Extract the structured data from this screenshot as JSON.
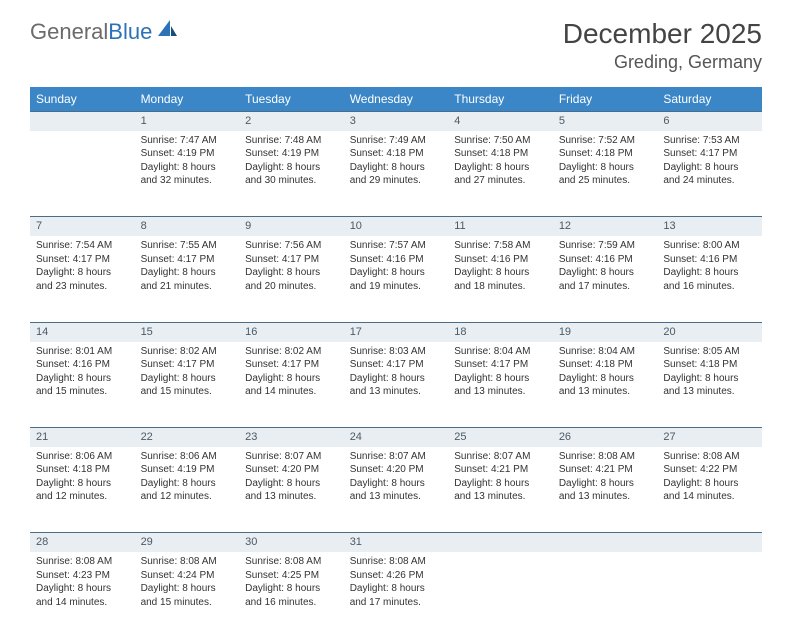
{
  "brand": {
    "name_gray": "General",
    "name_blue": "Blue"
  },
  "title": "December 2025",
  "location": "Greding, Germany",
  "header_bg": "#3b86c7",
  "daynum_bg": "#e9eef2",
  "daynum_border": "#4a6d8a",
  "weekdays": [
    "Sunday",
    "Monday",
    "Tuesday",
    "Wednesday",
    "Thursday",
    "Friday",
    "Saturday"
  ],
  "weeks": [
    {
      "days": [
        {
          "num": "",
          "lines": []
        },
        {
          "num": "1",
          "lines": [
            "Sunrise: 7:47 AM",
            "Sunset: 4:19 PM",
            "Daylight: 8 hours",
            "and 32 minutes."
          ]
        },
        {
          "num": "2",
          "lines": [
            "Sunrise: 7:48 AM",
            "Sunset: 4:19 PM",
            "Daylight: 8 hours",
            "and 30 minutes."
          ]
        },
        {
          "num": "3",
          "lines": [
            "Sunrise: 7:49 AM",
            "Sunset: 4:18 PM",
            "Daylight: 8 hours",
            "and 29 minutes."
          ]
        },
        {
          "num": "4",
          "lines": [
            "Sunrise: 7:50 AM",
            "Sunset: 4:18 PM",
            "Daylight: 8 hours",
            "and 27 minutes."
          ]
        },
        {
          "num": "5",
          "lines": [
            "Sunrise: 7:52 AM",
            "Sunset: 4:18 PM",
            "Daylight: 8 hours",
            "and 25 minutes."
          ]
        },
        {
          "num": "6",
          "lines": [
            "Sunrise: 7:53 AM",
            "Sunset: 4:17 PM",
            "Daylight: 8 hours",
            "and 24 minutes."
          ]
        }
      ]
    },
    {
      "days": [
        {
          "num": "7",
          "lines": [
            "Sunrise: 7:54 AM",
            "Sunset: 4:17 PM",
            "Daylight: 8 hours",
            "and 23 minutes."
          ]
        },
        {
          "num": "8",
          "lines": [
            "Sunrise: 7:55 AM",
            "Sunset: 4:17 PM",
            "Daylight: 8 hours",
            "and 21 minutes."
          ]
        },
        {
          "num": "9",
          "lines": [
            "Sunrise: 7:56 AM",
            "Sunset: 4:17 PM",
            "Daylight: 8 hours",
            "and 20 minutes."
          ]
        },
        {
          "num": "10",
          "lines": [
            "Sunrise: 7:57 AM",
            "Sunset: 4:16 PM",
            "Daylight: 8 hours",
            "and 19 minutes."
          ]
        },
        {
          "num": "11",
          "lines": [
            "Sunrise: 7:58 AM",
            "Sunset: 4:16 PM",
            "Daylight: 8 hours",
            "and 18 minutes."
          ]
        },
        {
          "num": "12",
          "lines": [
            "Sunrise: 7:59 AM",
            "Sunset: 4:16 PM",
            "Daylight: 8 hours",
            "and 17 minutes."
          ]
        },
        {
          "num": "13",
          "lines": [
            "Sunrise: 8:00 AM",
            "Sunset: 4:16 PM",
            "Daylight: 8 hours",
            "and 16 minutes."
          ]
        }
      ]
    },
    {
      "days": [
        {
          "num": "14",
          "lines": [
            "Sunrise: 8:01 AM",
            "Sunset: 4:16 PM",
            "Daylight: 8 hours",
            "and 15 minutes."
          ]
        },
        {
          "num": "15",
          "lines": [
            "Sunrise: 8:02 AM",
            "Sunset: 4:17 PM",
            "Daylight: 8 hours",
            "and 15 minutes."
          ]
        },
        {
          "num": "16",
          "lines": [
            "Sunrise: 8:02 AM",
            "Sunset: 4:17 PM",
            "Daylight: 8 hours",
            "and 14 minutes."
          ]
        },
        {
          "num": "17",
          "lines": [
            "Sunrise: 8:03 AM",
            "Sunset: 4:17 PM",
            "Daylight: 8 hours",
            "and 13 minutes."
          ]
        },
        {
          "num": "18",
          "lines": [
            "Sunrise: 8:04 AM",
            "Sunset: 4:17 PM",
            "Daylight: 8 hours",
            "and 13 minutes."
          ]
        },
        {
          "num": "19",
          "lines": [
            "Sunrise: 8:04 AM",
            "Sunset: 4:18 PM",
            "Daylight: 8 hours",
            "and 13 minutes."
          ]
        },
        {
          "num": "20",
          "lines": [
            "Sunrise: 8:05 AM",
            "Sunset: 4:18 PM",
            "Daylight: 8 hours",
            "and 13 minutes."
          ]
        }
      ]
    },
    {
      "days": [
        {
          "num": "21",
          "lines": [
            "Sunrise: 8:06 AM",
            "Sunset: 4:18 PM",
            "Daylight: 8 hours",
            "and 12 minutes."
          ]
        },
        {
          "num": "22",
          "lines": [
            "Sunrise: 8:06 AM",
            "Sunset: 4:19 PM",
            "Daylight: 8 hours",
            "and 12 minutes."
          ]
        },
        {
          "num": "23",
          "lines": [
            "Sunrise: 8:07 AM",
            "Sunset: 4:20 PM",
            "Daylight: 8 hours",
            "and 13 minutes."
          ]
        },
        {
          "num": "24",
          "lines": [
            "Sunrise: 8:07 AM",
            "Sunset: 4:20 PM",
            "Daylight: 8 hours",
            "and 13 minutes."
          ]
        },
        {
          "num": "25",
          "lines": [
            "Sunrise: 8:07 AM",
            "Sunset: 4:21 PM",
            "Daylight: 8 hours",
            "and 13 minutes."
          ]
        },
        {
          "num": "26",
          "lines": [
            "Sunrise: 8:08 AM",
            "Sunset: 4:21 PM",
            "Daylight: 8 hours",
            "and 13 minutes."
          ]
        },
        {
          "num": "27",
          "lines": [
            "Sunrise: 8:08 AM",
            "Sunset: 4:22 PM",
            "Daylight: 8 hours",
            "and 14 minutes."
          ]
        }
      ]
    },
    {
      "days": [
        {
          "num": "28",
          "lines": [
            "Sunrise: 8:08 AM",
            "Sunset: 4:23 PM",
            "Daylight: 8 hours",
            "and 14 minutes."
          ]
        },
        {
          "num": "29",
          "lines": [
            "Sunrise: 8:08 AM",
            "Sunset: 4:24 PM",
            "Daylight: 8 hours",
            "and 15 minutes."
          ]
        },
        {
          "num": "30",
          "lines": [
            "Sunrise: 8:08 AM",
            "Sunset: 4:25 PM",
            "Daylight: 8 hours",
            "and 16 minutes."
          ]
        },
        {
          "num": "31",
          "lines": [
            "Sunrise: 8:08 AM",
            "Sunset: 4:26 PM",
            "Daylight: 8 hours",
            "and 17 minutes."
          ]
        },
        {
          "num": "",
          "lines": []
        },
        {
          "num": "",
          "lines": []
        },
        {
          "num": "",
          "lines": []
        }
      ]
    }
  ]
}
